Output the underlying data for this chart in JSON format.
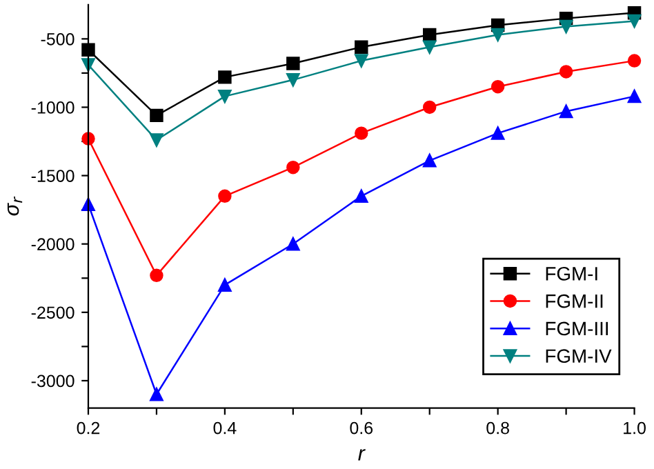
{
  "chart_data": {
    "type": "line",
    "xlabel": "r",
    "ylabel": "σ$_{r}$",
    "x": [
      0.2,
      0.3,
      0.4,
      0.5,
      0.6,
      0.7,
      0.8,
      0.9,
      1.0
    ],
    "series": [
      {
        "name": "FGM-I",
        "color": "#000000",
        "marker": "square",
        "values": [
          -580,
          -1060,
          -780,
          -680,
          -560,
          -470,
          -400,
          -350,
          -310
        ]
      },
      {
        "name": "FGM-II",
        "color": "#ff0000",
        "marker": "circle",
        "values": [
          -1230,
          -2230,
          -1650,
          -1440,
          -1190,
          -1000,
          -850,
          -740,
          -660
        ]
      },
      {
        "name": "FGM-III",
        "color": "#0000ff",
        "marker": "triangle",
        "values": [
          -1710,
          -3100,
          -2300,
          -2000,
          -1650,
          -1390,
          -1190,
          -1030,
          -920
        ]
      },
      {
        "name": "FGM-IV",
        "color": "#008080",
        "marker": "triangle_down",
        "values": [
          -690,
          -1240,
          -920,
          -800,
          -660,
          -560,
          -470,
          -410,
          -370
        ]
      }
    ],
    "xlim": [
      0.2,
      1.0
    ],
    "ylim": [
      -3200,
      -250
    ],
    "xticks": [
      0.2,
      {
        "value": 0.3,
        "label": null
      },
      0.4,
      {
        "value": 0.5,
        "label": null
      },
      0.6,
      {
        "value": 0.7,
        "label": null
      },
      0.8,
      {
        "value": 0.9,
        "label": null
      },
      {
        "value": 1.0,
        "label": "1.0"
      }
    ],
    "yticks": [
      -3000,
      {
        "value": -2750,
        "label": null
      },
      -2500,
      {
        "value": -2250,
        "label": null
      },
      -2000,
      {
        "value": -1750,
        "label": null
      },
      -1500,
      {
        "value": -1250,
        "label": null
      },
      -1000,
      {
        "value": -750,
        "label": null
      },
      -500
    ],
    "legend": "lower right",
    "grid": false,
    "line_style": "solid"
  }
}
